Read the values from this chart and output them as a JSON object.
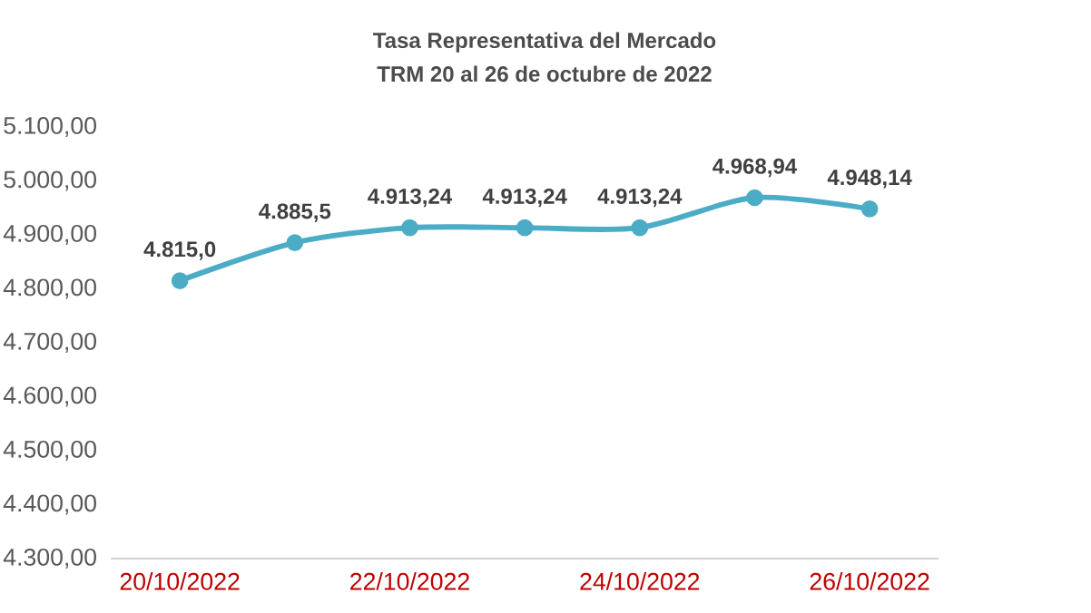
{
  "chart_data": {
    "type": "line",
    "title": "Tasa Representativa del Mercado",
    "subtitle": "TRM  20 al 26 de octubre  de 2022",
    "categories": [
      "20/10/2022",
      null,
      "22/10/2022",
      null,
      "24/10/2022",
      null,
      "26/10/2022"
    ],
    "series": [
      {
        "color": "#4bacc6",
        "values": [
          4815.0,
          4885.5,
          4913.24,
          4913.24,
          4913.24,
          4968.94,
          4948.14
        ],
        "value_labels": [
          "4.815,0",
          "4.885,5",
          "4.913,24",
          "4.913,24",
          "4.913,24",
          "4.968,94",
          "4.948,14"
        ]
      }
    ],
    "ylim": [
      4300,
      5100
    ],
    "yticks": [
      {
        "value": 4300,
        "label": "4.300,00"
      },
      {
        "value": 4400,
        "label": "4.400,00"
      },
      {
        "value": 4500,
        "label": "4.500,00"
      },
      {
        "value": 4600,
        "label": "4.600,00"
      },
      {
        "value": 4700,
        "label": "4.700,00"
      },
      {
        "value": 4800,
        "label": "4.800,00"
      },
      {
        "value": 4900,
        "label": "4.900,00"
      },
      {
        "value": 5000,
        "label": "5.000,00"
      },
      {
        "value": 5100,
        "label": "5.100,00"
      }
    ],
    "marker": "circle",
    "grid": false
  }
}
